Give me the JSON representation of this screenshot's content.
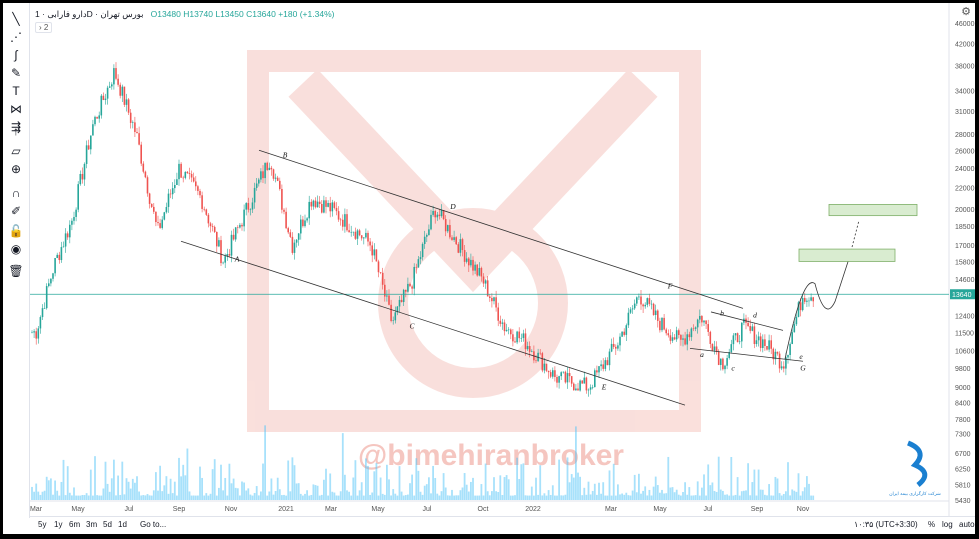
{
  "header": {
    "symbol": "دارو فارابی",
    "exchange": "بورس تهران",
    "interval": "1D",
    "ohlc": "O13480 H13740 L13450 C13640 +180 (+1.34%)",
    "sub_pill": "2"
  },
  "watermark": "@bimehiranbroker",
  "logo_text": "شرکت کارگزاری بیمه ایران",
  "chart_data": {
    "type": "candlestick",
    "y_scale": "log",
    "ylim": [
      5400,
      46000
    ],
    "y_ticks": [
      46000,
      42000,
      38000,
      34000,
      31000,
      28000,
      26000,
      24000,
      22000,
      20000,
      18500,
      17000,
      15800,
      14600,
      12400,
      11500,
      10600,
      9800,
      9000,
      8400,
      7800,
      7300,
      6700,
      6250,
      5810,
      5430
    ],
    "x_ticks": [
      "Mar",
      "May",
      "Jul",
      "Sep",
      "Nov",
      "2021",
      "Mar",
      "May",
      "Jul",
      "Oct",
      "2022",
      "Mar",
      "May",
      "Jul",
      "Sep",
      "Nov"
    ],
    "last_price": 13640,
    "last_price_label": "13640",
    "path": [
      [
        "Mar",
        11500
      ],
      [
        "",
        15500
      ],
      [
        "May",
        19000
      ],
      [
        "",
        29000
      ],
      [
        "Jul",
        37000
      ],
      [
        "",
        28000
      ],
      [
        "Sep",
        18000
      ],
      [
        "",
        24000
      ],
      [
        "",
        21000
      ],
      [
        "Nov",
        15800
      ],
      [
        "",
        20000
      ],
      [
        "2021",
        25200
      ],
      [
        "",
        17000
      ],
      [
        "",
        21000
      ],
      [
        "Mar",
        20000
      ],
      [
        "",
        18500
      ],
      [
        "May",
        17000
      ],
      [
        "",
        12000
      ],
      [
        "",
        14600
      ],
      [
        "Jul",
        20000
      ],
      [
        "",
        17000
      ],
      [
        "Oct",
        14500
      ],
      [
        "",
        11800
      ],
      [
        "2022",
        11000
      ],
      [
        "",
        9400
      ],
      [
        "Mar",
        9000
      ],
      [
        "",
        11000
      ],
      [
        "May",
        13640
      ],
      [
        "",
        12000
      ],
      [
        "",
        11000
      ],
      [
        "Jul",
        12400
      ],
      [
        "",
        10000
      ],
      [
        "",
        11800
      ],
      [
        "Sep",
        11000
      ],
      [
        "",
        10000
      ],
      [
        "Nov",
        13640
      ]
    ],
    "wave_labels": [
      {
        "text": "A",
        "date": "Nov",
        "price": 15800
      },
      {
        "text": "B",
        "date": "2021",
        "price": 25200
      },
      {
        "text": "C",
        "date": "May",
        "price": 11700
      },
      {
        "text": "D",
        "date": "Jul",
        "price": 20000
      },
      {
        "text": "E",
        "date": "Mar",
        "price": 8900
      },
      {
        "text": "F",
        "date": "May",
        "price": 14000
      },
      {
        "text": "a",
        "date": "Jul",
        "price": 10300
      },
      {
        "text": "b",
        "date": "Jul",
        "price": 12400
      },
      {
        "text": "c",
        "date": "Jul",
        "price": 9700
      },
      {
        "text": "d",
        "date": "Sep",
        "price": 12300
      },
      {
        "text": "e",
        "date": "Nov",
        "price": 10200
      },
      {
        "text": "G",
        "date": "Nov",
        "price": 9700
      }
    ],
    "target_zones": [
      {
        "price_low": 19400,
        "price_high": 20400
      },
      {
        "price_low": 15800,
        "price_high": 16700
      }
    ],
    "volume": "histogram below price (relative heights only)"
  },
  "bottom": {
    "ranges": [
      "5y",
      "1y",
      "6m",
      "3m",
      "5d",
      "1d"
    ],
    "goto": "Go to...",
    "clock": "۱۰:۳۵ (UTC+3:30)",
    "pct": "%",
    "log": "log",
    "auto": "auto"
  },
  "colors": {
    "up": "#26a69a",
    "down": "#ef5350",
    "volume": "#4fc3f7",
    "watermark": "#f5c6c0",
    "last_price_line": "#26a69a",
    "zone_fill": "#d9ecd0",
    "zone_border": "#7fb069"
  },
  "toolbar_icons": [
    "cursor-icon",
    "trend-line-icon",
    "fib-icon",
    "brush-icon",
    "text-icon",
    "pattern-icon",
    "projection-icon",
    "arrow-icon",
    "ruler-icon",
    "zoom-icon",
    "magnet-icon",
    "lock-drawing-icon",
    "lock-icon",
    "eye-icon",
    "trash-icon"
  ]
}
